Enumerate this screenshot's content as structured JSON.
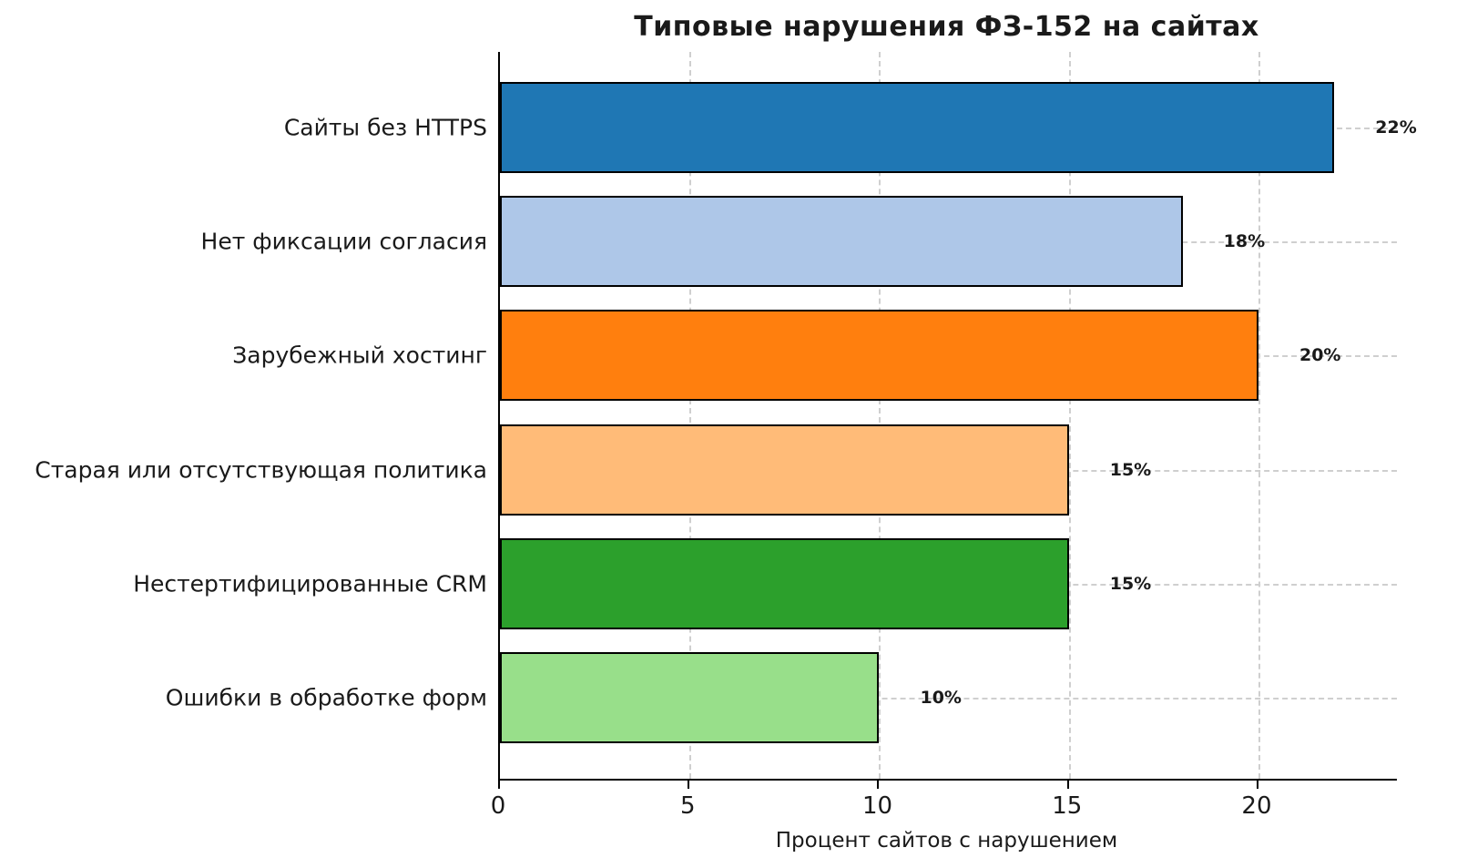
{
  "chart_data": {
    "type": "bar",
    "orientation": "horizontal",
    "title": "Типовые нарушения ФЗ-152 на сайтах",
    "xlabel": "Процент сайтов с нарушением",
    "ylabel": "",
    "categories": [
      "Сайты без HTTPS",
      "Нет фиксации согласия",
      "Зарубежный хостинг",
      "Старая или отсутствующая политика",
      "Нестертифицированные CRM",
      "Ошибки в обработке форм"
    ],
    "values": [
      22,
      18,
      20,
      15,
      15,
      10
    ],
    "value_labels": [
      "22%",
      "18%",
      "20%",
      "15%",
      "15%",
      "10%"
    ],
    "bar_colors": [
      "#1f77b4",
      "#aec7e8",
      "#ff7f0e",
      "#ffbb78",
      "#2ca02c",
      "#98df8a"
    ],
    "bar_edge_color": "#000000",
    "xlim": [
      0,
      23.65
    ],
    "xticks": [
      0,
      5,
      10,
      15,
      20
    ],
    "grid": true,
    "grid_color": "#cfcfcf",
    "grid_style": "dashed",
    "legend": "none",
    "background": "#ffffff"
  }
}
